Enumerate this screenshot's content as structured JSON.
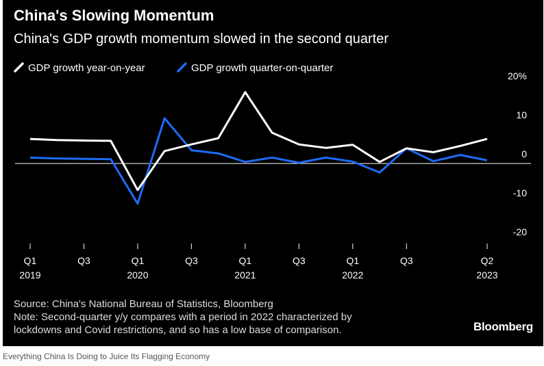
{
  "title": "China's Slowing Momentum",
  "subtitle": "China's GDP growth momentum slowed in the second quarter",
  "source": "Source: China's National Bureau of Statistics, Bloomberg",
  "note_line1": "Note: Second-quarter y/y compares with a period in 2022 characterized by",
  "note_line2": "lockdowns and Covid restrictions, and so has a low base of comparison.",
  "logo": "Bloomberg",
  "caption": "Everything China Is Doing to Juice Its Flagging Economy",
  "colors": {
    "background": "#000000",
    "yoy": "#ffffff",
    "qoq": "#1f6cf5"
  },
  "chart_data": {
    "type": "line",
    "title": "China's Slowing Momentum",
    "subtitle": "China's GDP growth momentum slowed in the second quarter",
    "x": [
      "2019 Q1",
      "2019 Q2",
      "2019 Q3",
      "2019 Q4",
      "2020 Q1",
      "2020 Q2",
      "2020 Q3",
      "2020 Q4",
      "2021 Q1",
      "2021 Q2",
      "2021 Q3",
      "2021 Q4",
      "2022 Q1",
      "2022 Q2",
      "2022 Q3",
      "2022 Q4",
      "2023 Q1",
      "2023 Q2"
    ],
    "series": [
      {
        "name": "GDP growth year-on-year",
        "color": "#ffffff",
        "values": [
          6.3,
          6.0,
          5.9,
          5.8,
          -6.8,
          3.2,
          4.9,
          6.5,
          18.3,
          7.9,
          4.9,
          4.0,
          4.8,
          0.4,
          3.9,
          2.9,
          4.5,
          6.3
        ]
      },
      {
        "name": "GDP growth quarter-on-quarter",
        "color": "#1f6cf5",
        "values": [
          1.5,
          1.3,
          1.2,
          1.1,
          -10.3,
          11.6,
          3.4,
          2.6,
          0.4,
          1.5,
          0.2,
          1.5,
          0.5,
          -2.3,
          3.9,
          0.6,
          2.2,
          0.8
        ]
      }
    ],
    "x_ticks": [
      {
        "index": 0,
        "label": "Q1",
        "year": "2019"
      },
      {
        "index": 2,
        "label": "Q3",
        "year": ""
      },
      {
        "index": 4,
        "label": "Q1",
        "year": "2020"
      },
      {
        "index": 6,
        "label": "Q3",
        "year": ""
      },
      {
        "index": 8,
        "label": "Q1",
        "year": "2021"
      },
      {
        "index": 10,
        "label": "Q3",
        "year": ""
      },
      {
        "index": 12,
        "label": "Q1",
        "year": "2022"
      },
      {
        "index": 14,
        "label": "Q3",
        "year": ""
      },
      {
        "index": 17,
        "label": "Q2",
        "year": "2023"
      }
    ],
    "y_ticks": [
      {
        "value": 20,
        "label": "20%"
      },
      {
        "value": 10,
        "label": "10"
      },
      {
        "value": 0,
        "label": "0"
      },
      {
        "value": -10,
        "label": "-10"
      },
      {
        "value": -20,
        "label": "-20"
      }
    ],
    "ylim": [
      -20,
      20
    ],
    "zero_line": true,
    "grid": false,
    "legend_position": "top-left"
  }
}
